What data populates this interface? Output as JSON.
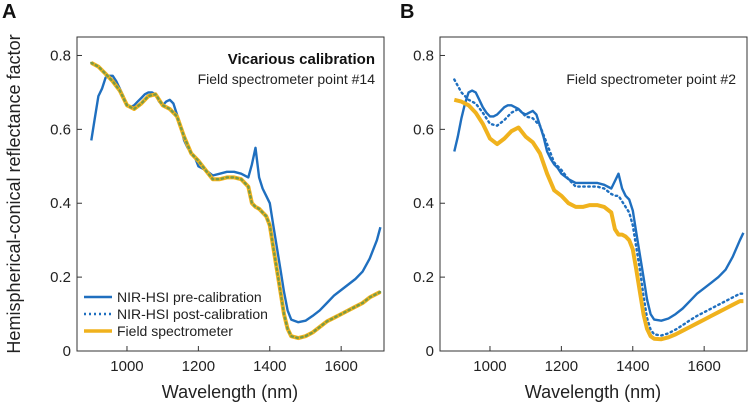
{
  "colors": {
    "pre": "#1f6fbf",
    "post": "#1f6fbf",
    "field": "#f0b21d",
    "fieldDotted": "#7a9a45",
    "axis": "#333333"
  },
  "ylabel": "Hemispherical-conical reflectance factor",
  "legend": {
    "items": [
      {
        "label": "NIR-HSI pre-calibration",
        "style": "solid",
        "color": "#1f6fbf"
      },
      {
        "label": "NIR-HSI post-calibration",
        "style": "dotted",
        "color": "#1f6fbf"
      },
      {
        "label": "Field spectrometer",
        "style": "solid",
        "color": "#f0b21d"
      }
    ]
  },
  "chart_data": [
    {
      "panel": "A",
      "type": "line",
      "title": "Vicarious calibration",
      "subtitle": "Field spectrometer point #14",
      "xlabel": "Wavelength (nm)",
      "ylabel": "Hemispherical-conical reflectance factor",
      "xlim": [
        860,
        1720
      ],
      "ylim": [
        0,
        0.85
      ],
      "xticks": [
        1000,
        1200,
        1400,
        1600
      ],
      "yticks": [
        0,
        0.2,
        0.4,
        0.6,
        0.8
      ],
      "ytick_labels": [
        "0",
        "0.2",
        "0.4",
        "0.6",
        "0.8"
      ],
      "series": [
        {
          "name": "NIR-HSI pre-calibration",
          "style": "solid",
          "color": "#1f6fbf",
          "x": [
            900,
            910,
            920,
            930,
            940,
            950,
            960,
            970,
            980,
            990,
            1000,
            1010,
            1020,
            1030,
            1040,
            1050,
            1060,
            1070,
            1080,
            1090,
            1100,
            1110,
            1120,
            1130,
            1140,
            1150,
            1160,
            1170,
            1180,
            1190,
            1200,
            1220,
            1240,
            1260,
            1280,
            1300,
            1320,
            1340,
            1350,
            1360,
            1370,
            1380,
            1390,
            1400,
            1410,
            1420,
            1430,
            1440,
            1450,
            1460,
            1480,
            1500,
            1520,
            1540,
            1560,
            1580,
            1600,
            1620,
            1640,
            1660,
            1680,
            1700,
            1710
          ],
          "y": [
            0.57,
            0.63,
            0.69,
            0.71,
            0.74,
            0.745,
            0.745,
            0.73,
            0.71,
            0.69,
            0.665,
            0.66,
            0.665,
            0.675,
            0.685,
            0.695,
            0.7,
            0.7,
            0.695,
            0.675,
            0.665,
            0.675,
            0.68,
            0.67,
            0.64,
            0.61,
            0.57,
            0.55,
            0.535,
            0.525,
            0.5,
            0.49,
            0.475,
            0.48,
            0.485,
            0.485,
            0.48,
            0.47,
            0.505,
            0.55,
            0.47,
            0.44,
            0.42,
            0.4,
            0.34,
            0.28,
            0.22,
            0.16,
            0.11,
            0.085,
            0.078,
            0.082,
            0.095,
            0.11,
            0.13,
            0.15,
            0.165,
            0.18,
            0.195,
            0.215,
            0.25,
            0.3,
            0.335
          ]
        },
        {
          "name": "Field spectrometer",
          "style": "solid",
          "color": "#f0b21d",
          "x": [
            900,
            920,
            940,
            960,
            980,
            1000,
            1020,
            1040,
            1060,
            1080,
            1100,
            1120,
            1140,
            1160,
            1180,
            1200,
            1220,
            1240,
            1260,
            1280,
            1300,
            1320,
            1340,
            1350,
            1360,
            1370,
            1380,
            1390,
            1400,
            1410,
            1420,
            1430,
            1440,
            1450,
            1460,
            1480,
            1500,
            1520,
            1540,
            1560,
            1580,
            1600,
            1620,
            1640,
            1660,
            1680,
            1700,
            1710
          ],
          "y": [
            0.78,
            0.77,
            0.75,
            0.73,
            0.705,
            0.665,
            0.655,
            0.67,
            0.69,
            0.695,
            0.665,
            0.655,
            0.635,
            0.58,
            0.535,
            0.515,
            0.49,
            0.465,
            0.465,
            0.47,
            0.47,
            0.465,
            0.445,
            0.4,
            0.39,
            0.385,
            0.375,
            0.365,
            0.34,
            0.28,
            0.22,
            0.16,
            0.1,
            0.06,
            0.04,
            0.035,
            0.04,
            0.05,
            0.065,
            0.08,
            0.09,
            0.1,
            0.11,
            0.12,
            0.13,
            0.145,
            0.155,
            0.16
          ]
        },
        {
          "name": "NIR-HSI post-calibration",
          "style": "dotted",
          "color": "#7a9a45",
          "x": [
            900,
            920,
            940,
            960,
            980,
            1000,
            1020,
            1040,
            1060,
            1080,
            1100,
            1120,
            1140,
            1160,
            1180,
            1200,
            1220,
            1240,
            1260,
            1280,
            1300,
            1320,
            1340,
            1350,
            1360,
            1370,
            1380,
            1390,
            1400,
            1410,
            1420,
            1430,
            1440,
            1450,
            1460,
            1480,
            1500,
            1520,
            1540,
            1560,
            1580,
            1600,
            1620,
            1640,
            1660,
            1680,
            1700,
            1710
          ],
          "y": [
            0.78,
            0.77,
            0.75,
            0.73,
            0.705,
            0.665,
            0.655,
            0.67,
            0.69,
            0.695,
            0.665,
            0.655,
            0.635,
            0.58,
            0.535,
            0.515,
            0.49,
            0.465,
            0.465,
            0.47,
            0.47,
            0.465,
            0.445,
            0.4,
            0.39,
            0.385,
            0.375,
            0.365,
            0.34,
            0.28,
            0.22,
            0.16,
            0.1,
            0.06,
            0.04,
            0.035,
            0.04,
            0.05,
            0.065,
            0.08,
            0.09,
            0.1,
            0.11,
            0.12,
            0.13,
            0.145,
            0.155,
            0.16
          ]
        }
      ]
    },
    {
      "panel": "B",
      "type": "line",
      "title": "",
      "subtitle": "Field spectrometer point #2",
      "xlabel": "Wavelength (nm)",
      "ylabel": "",
      "xlim": [
        860,
        1720
      ],
      "ylim": [
        0,
        0.85
      ],
      "xticks": [
        1000,
        1200,
        1400,
        1600
      ],
      "yticks": [
        0,
        0.2,
        0.4,
        0.6,
        0.8
      ],
      "ytick_labels": [
        "0",
        "0.2",
        "0.4",
        "0.6",
        "0.8"
      ],
      "series": [
        {
          "name": "NIR-HSI pre-calibration",
          "style": "solid",
          "color": "#1f6fbf",
          "x": [
            900,
            910,
            920,
            930,
            940,
            950,
            960,
            970,
            980,
            990,
            1000,
            1010,
            1020,
            1030,
            1040,
            1050,
            1060,
            1070,
            1080,
            1090,
            1100,
            1110,
            1120,
            1130,
            1140,
            1150,
            1160,
            1170,
            1180,
            1190,
            1200,
            1220,
            1240,
            1260,
            1280,
            1300,
            1320,
            1340,
            1350,
            1360,
            1370,
            1380,
            1390,
            1400,
            1410,
            1420,
            1430,
            1440,
            1450,
            1460,
            1480,
            1500,
            1520,
            1540,
            1560,
            1580,
            1600,
            1620,
            1640,
            1660,
            1680,
            1700,
            1710
          ],
          "y": [
            0.54,
            0.58,
            0.63,
            0.67,
            0.7,
            0.705,
            0.7,
            0.68,
            0.66,
            0.645,
            0.635,
            0.635,
            0.64,
            0.65,
            0.66,
            0.665,
            0.665,
            0.66,
            0.655,
            0.645,
            0.64,
            0.645,
            0.65,
            0.64,
            0.61,
            0.58,
            0.54,
            0.52,
            0.505,
            0.495,
            0.48,
            0.465,
            0.455,
            0.455,
            0.455,
            0.455,
            0.45,
            0.44,
            0.46,
            0.48,
            0.44,
            0.42,
            0.41,
            0.38,
            0.32,
            0.26,
            0.2,
            0.14,
            0.1,
            0.085,
            0.082,
            0.088,
            0.1,
            0.115,
            0.135,
            0.155,
            0.17,
            0.185,
            0.2,
            0.22,
            0.255,
            0.3,
            0.32
          ]
        },
        {
          "name": "NIR-HSI post-calibration",
          "style": "dotted",
          "color": "#1f6fbf",
          "x": [
            900,
            920,
            940,
            960,
            980,
            1000,
            1020,
            1040,
            1060,
            1080,
            1100,
            1120,
            1140,
            1160,
            1180,
            1200,
            1220,
            1240,
            1260,
            1280,
            1300,
            1320,
            1340,
            1350,
            1360,
            1370,
            1380,
            1390,
            1400,
            1410,
            1420,
            1430,
            1440,
            1450,
            1460,
            1480,
            1500,
            1520,
            1540,
            1560,
            1580,
            1600,
            1620,
            1640,
            1660,
            1680,
            1700,
            1710
          ],
          "y": [
            0.735,
            0.7,
            0.68,
            0.67,
            0.645,
            0.615,
            0.61,
            0.625,
            0.645,
            0.655,
            0.635,
            0.63,
            0.61,
            0.56,
            0.51,
            0.49,
            0.465,
            0.445,
            0.445,
            0.445,
            0.445,
            0.44,
            0.425,
            0.42,
            0.42,
            0.405,
            0.39,
            0.375,
            0.34,
            0.28,
            0.22,
            0.15,
            0.09,
            0.058,
            0.045,
            0.042,
            0.048,
            0.058,
            0.07,
            0.083,
            0.095,
            0.105,
            0.115,
            0.125,
            0.135,
            0.145,
            0.155,
            0.155
          ]
        },
        {
          "name": "Field spectrometer",
          "style": "solid",
          "color": "#f0b21d",
          "x": [
            900,
            920,
            940,
            960,
            980,
            1000,
            1020,
            1040,
            1060,
            1080,
            1100,
            1120,
            1140,
            1160,
            1180,
            1200,
            1220,
            1240,
            1260,
            1280,
            1300,
            1320,
            1340,
            1350,
            1360,
            1370,
            1380,
            1390,
            1400,
            1410,
            1420,
            1430,
            1440,
            1450,
            1460,
            1480,
            1500,
            1520,
            1540,
            1560,
            1580,
            1600,
            1620,
            1640,
            1660,
            1680,
            1700,
            1710
          ],
          "y": [
            0.68,
            0.675,
            0.665,
            0.645,
            0.615,
            0.575,
            0.56,
            0.575,
            0.595,
            0.605,
            0.58,
            0.565,
            0.535,
            0.48,
            0.435,
            0.42,
            0.4,
            0.39,
            0.39,
            0.395,
            0.395,
            0.39,
            0.375,
            0.33,
            0.315,
            0.315,
            0.31,
            0.3,
            0.275,
            0.22,
            0.16,
            0.1,
            0.06,
            0.04,
            0.033,
            0.032,
            0.037,
            0.045,
            0.055,
            0.065,
            0.075,
            0.085,
            0.095,
            0.105,
            0.115,
            0.125,
            0.135,
            0.135
          ]
        }
      ]
    }
  ]
}
